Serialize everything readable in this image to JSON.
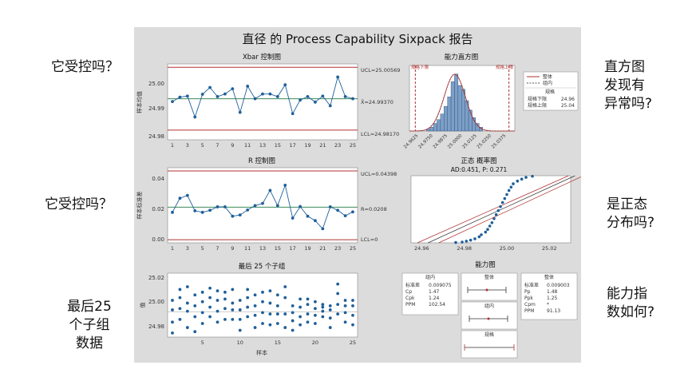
{
  "questions": {
    "q1": "它受控吗？",
    "q2": "它受控吗？",
    "q3": [
      "最后25",
      "个子组",
      "数据"
    ],
    "q4": [
      "直方图",
      "发现有",
      "异常吗?"
    ],
    "q5": [
      "是正态",
      "分布吗?"
    ],
    "q6": [
      "能力指",
      "数如何?"
    ]
  },
  "panel": {
    "title": "直径 的 Process Capability Sixpack 报告"
  },
  "xbar": {
    "title": "Xbar 控制图",
    "ylabel": "样本均值",
    "ucl_label": "UCL=25.00569",
    "center_label": "X̄=24.99370",
    "lcl_label": "LCL=24.98170",
    "yticks": [
      "25.00",
      "24.99",
      "24.98"
    ],
    "xticks": [
      "1",
      "3",
      "5",
      "7",
      "9",
      "11",
      "13",
      "15",
      "17",
      "19",
      "21",
      "23",
      "25"
    ]
  },
  "rchart": {
    "title": "R 控制图",
    "ylabel": "样本标准差",
    "ucl_label": "UCL=0.04398",
    "center_label": "R=0.0208",
    "lcl_label": "LCL=0",
    "yticks": [
      "0.04",
      "0.02",
      "0.00"
    ],
    "xticks": [
      "1",
      "3",
      "5",
      "7",
      "9",
      "11",
      "13",
      "15",
      "17",
      "19",
      "21",
      "23",
      "25"
    ]
  },
  "last25": {
    "title": "最后 25 个子组",
    "ylabel": "值",
    "xlabel": "样本",
    "yticks": [
      "25.02",
      "25.00",
      "24.98"
    ],
    "xticks": [
      "5",
      "10",
      "15",
      "20",
      "25"
    ]
  },
  "histogram": {
    "title": "能力直方图",
    "lsl_tag": "规格下限",
    "usl_tag": "规格上限",
    "xticks": [
      "24.9625",
      "24.9750",
      "24.9875",
      "25.0000",
      "25.0125",
      "25.0250",
      "25.0375"
    ],
    "legend": {
      "overall": "整体",
      "within": "组内",
      "spec_head": "规格",
      "lsl_label": "规格下限",
      "lsl_value": "24.96",
      "usl_label": "规格上限",
      "usl_value": "25.04"
    }
  },
  "normal": {
    "title": "正态 概率图",
    "subtitle": "AD:0.451,  P: 0.271",
    "xticks": [
      "24.96",
      "24.98",
      "25.00",
      "25.02"
    ]
  },
  "capability": {
    "title": "能力图",
    "within": {
      "head": "组内",
      "rows": [
        [
          "标准差",
          "0.009075"
        ],
        [
          "Cp",
          "1.47"
        ],
        [
          "Cpk",
          "1.24"
        ],
        [
          "PPM",
          "102.54"
        ]
      ]
    },
    "overall": {
      "head": "整体",
      "rows": [
        [
          "标准差",
          "0.009003"
        ],
        [
          "Pp",
          "1.48"
        ],
        [
          "Ppk",
          "1.25"
        ],
        [
          "Cpm",
          "*"
        ],
        [
          "PPM",
          "91.13"
        ]
      ]
    },
    "bars": [
      "整体",
      "组内",
      "规格"
    ]
  },
  "colors": {
    "data": "#1f5f9a",
    "center": "#3c8c5a",
    "limit": "#b03030",
    "panel": "#dcdcdc"
  },
  "chart_data": [
    {
      "type": "line",
      "title": "Xbar 控制图",
      "ylabel": "样本均值",
      "x": [
        1,
        2,
        3,
        4,
        5,
        6,
        7,
        8,
        9,
        10,
        11,
        12,
        13,
        14,
        15,
        16,
        17,
        18,
        19,
        20,
        21,
        22,
        23,
        24,
        25
      ],
      "series": [
        {
          "values": [
            24.9926,
            24.9943,
            24.9947,
            24.9867,
            24.9954,
            24.998,
            24.9945,
            24.9955,
            24.9975,
            24.9885,
            24.9985,
            24.9937,
            24.9955,
            24.9955,
            24.9945,
            24.999,
            24.988,
            24.9932,
            24.9945,
            24.9924,
            24.9947,
            24.991,
            25.002,
            24.9945,
            24.9937
          ]
        }
      ],
      "ucl": 25.00569,
      "center": 24.9937,
      "lcl": 24.9817,
      "ylim": [
        24.978,
        25.007
      ]
    },
    {
      "type": "line",
      "title": "R 控制图",
      "ylabel": "样本标准差",
      "x": [
        1,
        2,
        3,
        4,
        5,
        6,
        7,
        8,
        9,
        10,
        11,
        12,
        13,
        14,
        15,
        16,
        17,
        18,
        19,
        20,
        21,
        22,
        23,
        24,
        25
      ],
      "series": [
        {
          "values": [
            0.0175,
            0.0265,
            0.0283,
            0.0185,
            0.0175,
            0.0188,
            0.021,
            0.021,
            0.015,
            0.0158,
            0.019,
            0.0218,
            0.0232,
            0.0315,
            0.0218,
            0.0348,
            0.0138,
            0.0212,
            0.015,
            0.0122,
            0.007,
            0.021,
            0.0188,
            0.0153,
            0.0178
          ]
        }
      ],
      "ucl": 0.04398,
      "center": 0.0208,
      "lcl": 0,
      "ylim": [
        -0.002,
        0.046
      ]
    },
    {
      "type": "scatter",
      "title": "最后 25 个子组",
      "xlabel": "样本",
      "ylabel": "值",
      "x": [
        1,
        2,
        3,
        4,
        5,
        6,
        7,
        8,
        9,
        10,
        11,
        12,
        13,
        14,
        15,
        16,
        17,
        18,
        19,
        20,
        21,
        22,
        23,
        24,
        25
      ],
      "series": [
        {
          "name": "",
          "values": [
            [
              24.978,
              24.986,
              24.995,
              25.002
            ],
            [
              24.988,
              24.996,
              25.004,
              25.01
            ],
            [
              24.982,
              24.994,
              25.0,
              25.012
            ],
            [
              24.979,
              24.99,
              24.998,
              25.006
            ],
            [
              24.985,
              24.993,
              25.001,
              25.008
            ],
            [
              24.99,
              24.997,
              25.004,
              25.011
            ],
            [
              24.986,
              24.994,
              25.002,
              25.009
            ],
            [
              24.988,
              24.996,
              25.003,
              25.008
            ],
            [
              24.988,
              24.995,
              25.0,
              25.01
            ],
            [
              24.98,
              24.988,
              24.995,
              25.002
            ],
            [
              24.99,
              24.997,
              25.004,
              25.01
            ],
            [
              24.982,
              24.991,
              24.998,
              25.006
            ],
            [
              24.985,
              24.993,
              25.001,
              25.008
            ],
            [
              24.984,
              24.992,
              25.0,
              25.009
            ],
            [
              24.985,
              24.992,
              24.998,
              25.006
            ],
            [
              24.982,
              24.992,
              25.004,
              25.012
            ],
            [
              24.98,
              24.987,
              24.993,
              24.998
            ],
            [
              24.984,
              24.99,
              24.997,
              25.003
            ],
            [
              24.986,
              24.992,
              24.999,
              25.003
            ],
            [
              24.985,
              24.991,
              24.996,
              25.001
            ],
            [
              24.99,
              24.994,
              24.997,
              24.999
            ],
            [
              24.982,
              24.989,
              24.995,
              24.998
            ],
            [
              24.992,
              24.999,
              25.007,
              25.014
            ],
            [
              24.986,
              24.993,
              24.998,
              25.002
            ],
            [
              24.984,
              24.991,
              24.998,
              25.002
            ]
          ]
        }
      ],
      "ylim": [
        24.975,
        25.022
      ]
    },
    {
      "type": "bar",
      "title": "能力直方图",
      "categories": [
        "24.971",
        "24.974",
        "24.977",
        "24.980",
        "24.983",
        "24.986",
        "24.989",
        "24.992",
        "24.995",
        "24.998",
        "25.001",
        "25.004",
        "25.007",
        "25.010",
        "25.013",
        "25.016"
      ],
      "values": [
        1,
        2,
        4,
        6,
        9,
        13,
        18,
        26,
        30,
        24,
        22,
        16,
        11,
        7,
        4,
        2
      ],
      "lsl": 24.96,
      "usl": 25.04,
      "xlim": [
        24.955,
        25.045
      ]
    },
    {
      "type": "scatter",
      "title": "正态 概率图",
      "subtitle": "AD:0.451,  P: 0.271",
      "x": [
        24.976,
        24.979,
        24.981,
        24.983,
        24.985,
        24.987,
        24.988,
        24.99,
        24.991,
        24.992,
        24.993,
        24.994,
        24.995,
        24.996,
        24.997,
        24.998,
        24.999,
        25.0,
        25.001,
        25.002,
        25.003,
        25.005,
        25.007,
        25.009,
        25.012
      ],
      "y": [
        0.5,
        1.2,
        2.5,
        4,
        6,
        9,
        12,
        16,
        20,
        25,
        30,
        36,
        42,
        48,
        54,
        60,
        66,
        72,
        78,
        83,
        88,
        92,
        95,
        97.5,
        99.2
      ],
      "xlim": [
        24.955,
        25.03
      ]
    }
  ]
}
